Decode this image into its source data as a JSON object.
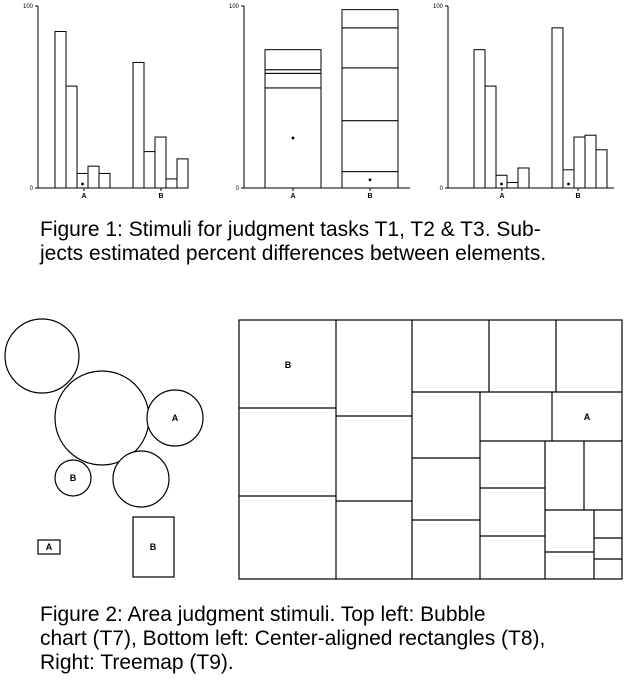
{
  "figure1": {
    "caption_lines": [
      "Figure 1: Stimuli for judgment tasks T1, T2 & T3. Sub-",
      "jects estimated percent differences between elements."
    ],
    "y_tick_top": "100",
    "y_tick_bottom": "0",
    "category_a": "A",
    "category_b": "B"
  },
  "chart_data": [
    {
      "type": "bar",
      "subtype": "grouped",
      "task": "T1",
      "ylim": [
        0,
        100
      ],
      "groups": [
        {
          "name": "A",
          "values": [
            86,
            56,
            8,
            12,
            8
          ],
          "marked_index": 2
        },
        {
          "name": "B",
          "values": [
            69,
            20,
            28,
            5,
            16
          ],
          "marked_index": null
        }
      ]
    },
    {
      "type": "bar",
      "subtype": "stacked",
      "task": "T2",
      "ylim": [
        0,
        100
      ],
      "groups": [
        {
          "name": "A",
          "segments": [
            55,
            8,
            2,
            11
          ],
          "marked_index": 0
        },
        {
          "name": "B",
          "segments": [
            9,
            28,
            29,
            22,
            10
          ],
          "marked_index": 0
        }
      ]
    },
    {
      "type": "bar",
      "subtype": "grouped",
      "task": "T3",
      "ylim": [
        0,
        100
      ],
      "groups": [
        {
          "name": "A",
          "values": [
            76,
            56,
            7,
            3,
            11
          ],
          "marked_index": 2
        },
        {
          "name": "B",
          "values": [
            88,
            10,
            28,
            29,
            21
          ],
          "marked_index": 1
        }
      ]
    }
  ],
  "figure2": {
    "caption_lines": [
      "Figure 2:  Area judgment stimuli.  Top left:  Bubble",
      "chart (T7), Bottom left: Center-aligned rectangles (T8),",
      "Right: Treemap (T9)."
    ],
    "bubble_label_a": "A",
    "bubble_label_b": "B",
    "rect_label_a": "A",
    "rect_label_b": "B",
    "treemap_label_a": "A",
    "treemap_label_b": "B"
  }
}
